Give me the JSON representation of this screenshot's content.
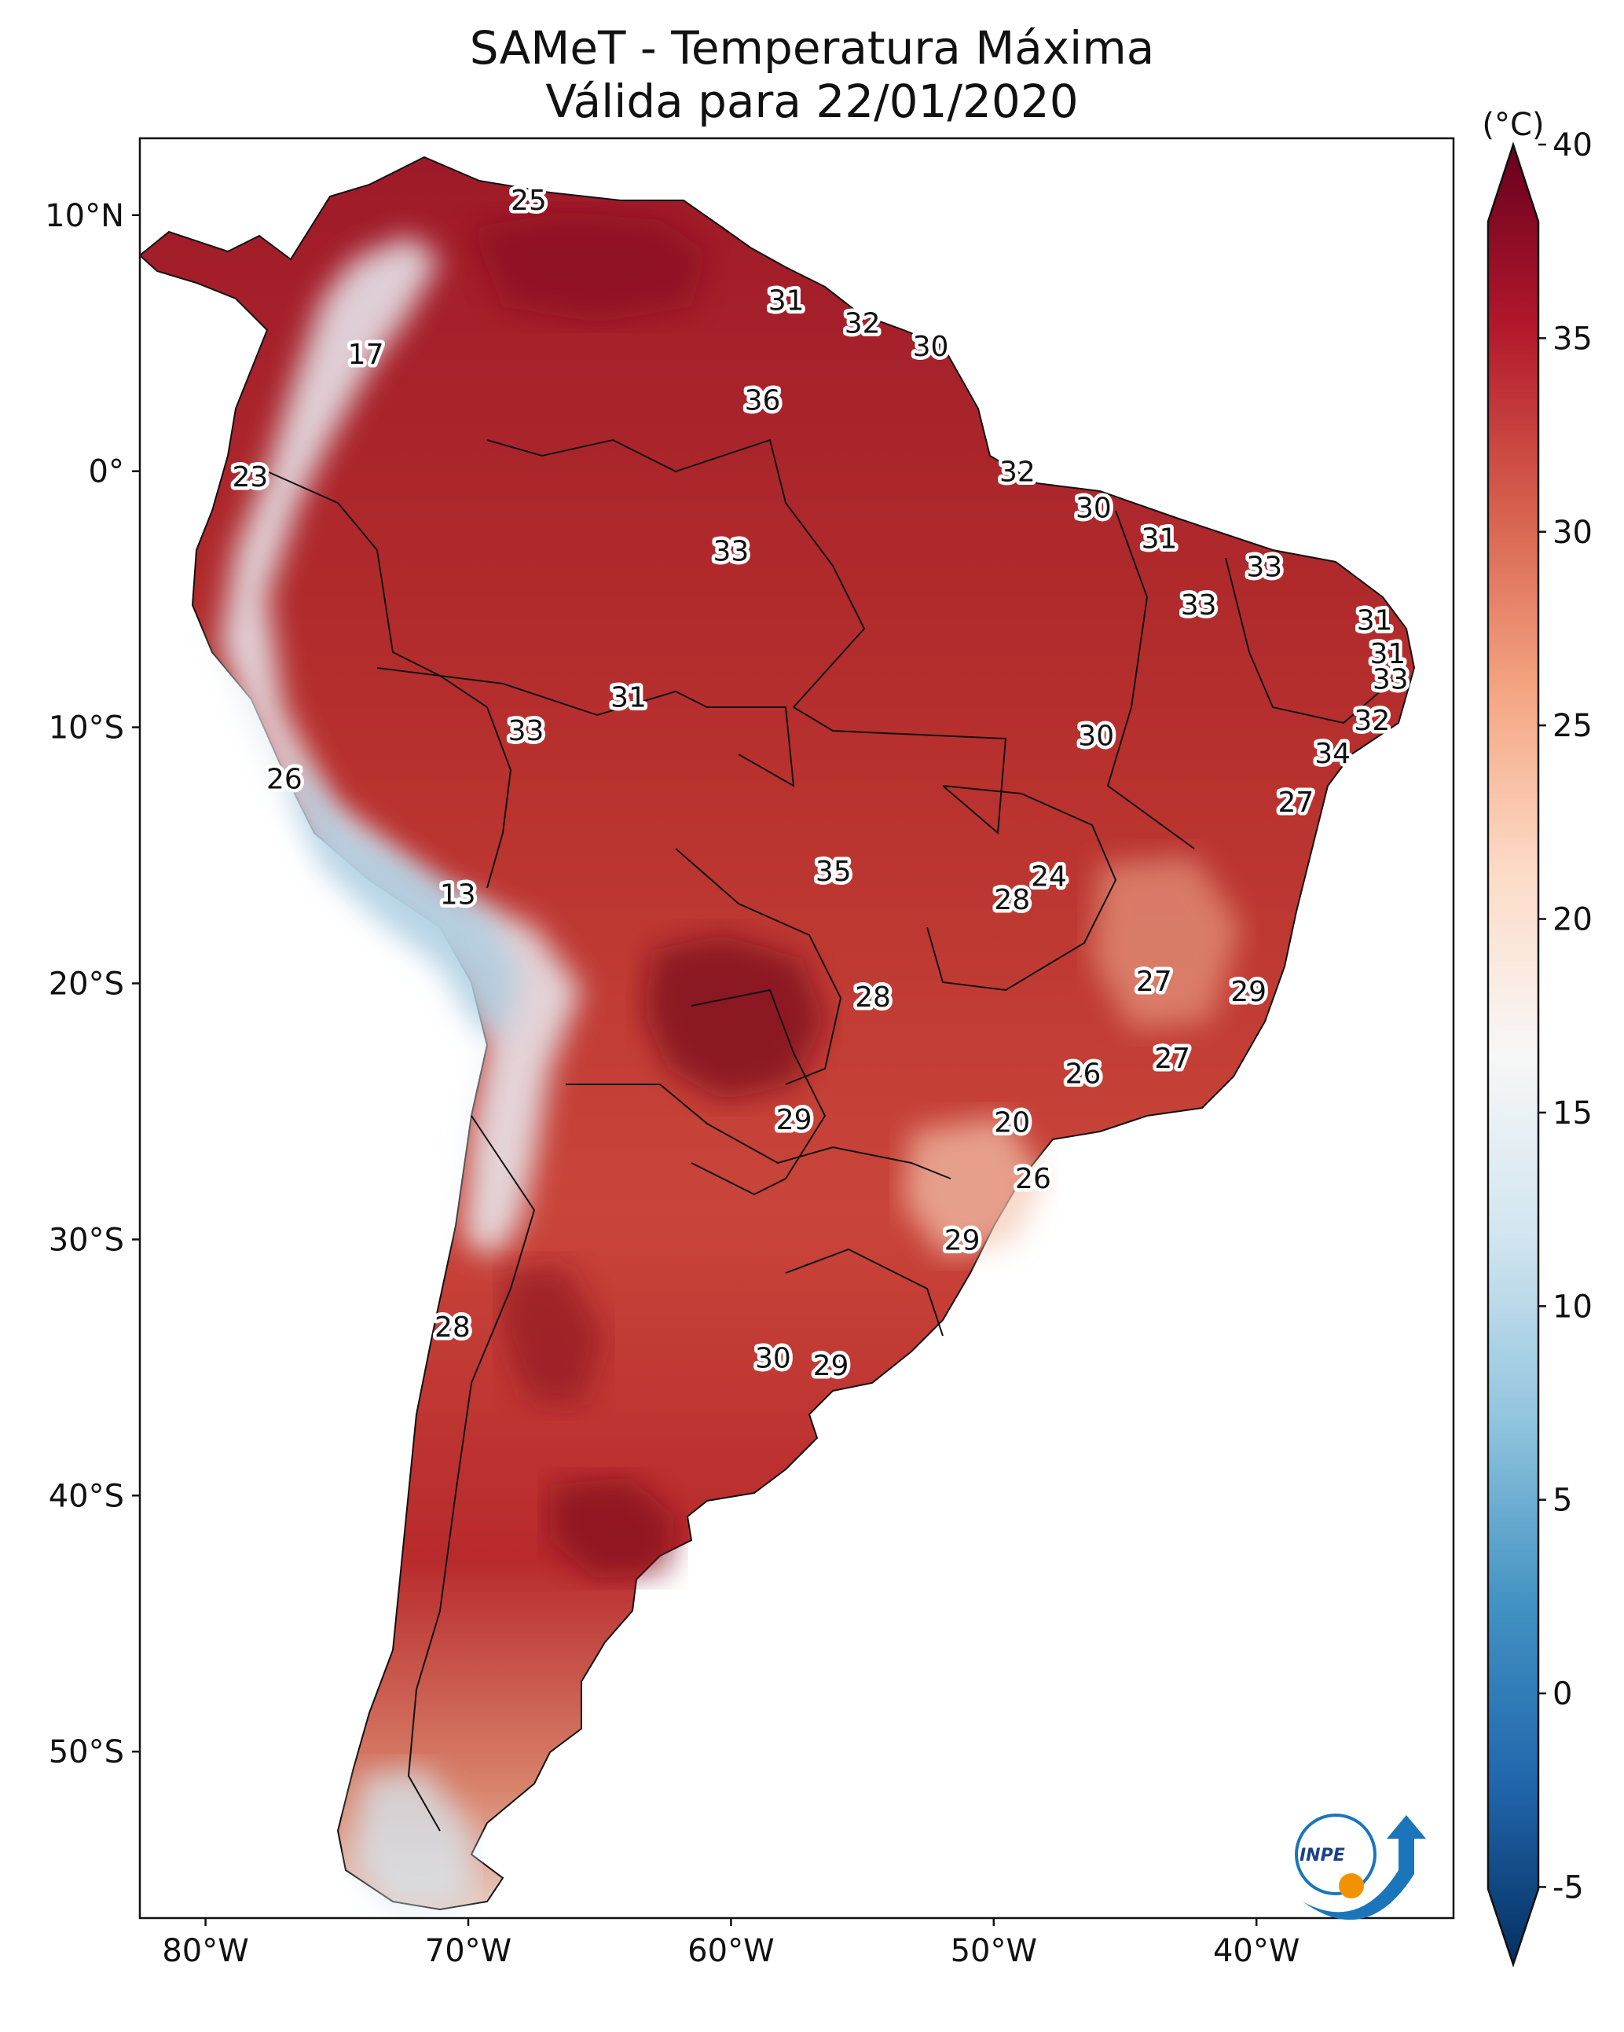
{
  "title": "SAMeT - Temperatura Máxima",
  "subtitle": "Válida para 22/01/2020",
  "colorbar": {
    "unit": "(°C)",
    "ticks": [
      "40",
      "35",
      "30",
      "25",
      "20",
      "15",
      "10",
      "5",
      "0",
      "-5"
    ],
    "min": -7,
    "max": 40,
    "palette": [
      "#053061",
      "#2166ac",
      "#4393c3",
      "#92c5de",
      "#d1e5f0",
      "#f7f7f7",
      "#fddbc7",
      "#f4a582",
      "#d6604d",
      "#b2182b",
      "#67001f"
    ]
  },
  "axes": {
    "lat_ticks": [
      "10°N",
      "0°",
      "10°S",
      "20°S",
      "30°S",
      "40°S",
      "50°S"
    ],
    "lon_ticks": [
      "80°W",
      "70°W",
      "60°W",
      "50°W",
      "40°W"
    ]
  },
  "logo_text": "INPE",
  "chart_data": {
    "type": "map",
    "title": "SAMeT - Temperatura Máxima Válida para 22/01/2020",
    "unit": "°C",
    "xlim": [
      -82.5,
      -32.5
    ],
    "ylim": [
      -56.5,
      13
    ],
    "labels": [
      {
        "lon": -67.7,
        "lat": 10.6,
        "value": "25"
      },
      {
        "lon": -73.9,
        "lat": 4.6,
        "value": "17"
      },
      {
        "lon": -78.3,
        "lat": -0.2,
        "value": "23"
      },
      {
        "lon": -57.9,
        "lat": 6.7,
        "value": "31"
      },
      {
        "lon": -55.0,
        "lat": 5.8,
        "value": "32"
      },
      {
        "lon": -52.4,
        "lat": 4.9,
        "value": "30"
      },
      {
        "lon": -58.8,
        "lat": 2.8,
        "value": "36"
      },
      {
        "lon": -49.1,
        "lat": 0.0,
        "value": "32"
      },
      {
        "lon": -46.2,
        "lat": -1.4,
        "value": "30"
      },
      {
        "lon": -43.7,
        "lat": -2.6,
        "value": "31"
      },
      {
        "lon": -39.7,
        "lat": -3.7,
        "value": "33"
      },
      {
        "lon": -60.0,
        "lat": -3.1,
        "value": "33"
      },
      {
        "lon": -42.2,
        "lat": -5.2,
        "value": "33"
      },
      {
        "lon": -35.5,
        "lat": -5.8,
        "value": "31"
      },
      {
        "lon": -35.0,
        "lat": -7.1,
        "value": "31"
      },
      {
        "lon": -34.9,
        "lat": -8.1,
        "value": "33"
      },
      {
        "lon": -35.6,
        "lat": -9.7,
        "value": "32"
      },
      {
        "lon": -37.1,
        "lat": -11.0,
        "value": "34"
      },
      {
        "lon": -38.5,
        "lat": -12.9,
        "value": "27"
      },
      {
        "lon": -46.1,
        "lat": -10.3,
        "value": "30"
      },
      {
        "lon": -63.9,
        "lat": -8.8,
        "value": "31"
      },
      {
        "lon": -67.8,
        "lat": -10.1,
        "value": "33"
      },
      {
        "lon": -77.0,
        "lat": -12.0,
        "value": "26"
      },
      {
        "lon": -70.4,
        "lat": -16.5,
        "value": "13"
      },
      {
        "lon": -56.1,
        "lat": -15.6,
        "value": "35"
      },
      {
        "lon": -47.9,
        "lat": -15.8,
        "value": "24"
      },
      {
        "lon": -49.3,
        "lat": -16.7,
        "value": "28"
      },
      {
        "lon": -43.9,
        "lat": -19.9,
        "value": "27"
      },
      {
        "lon": -40.3,
        "lat": -20.3,
        "value": "29"
      },
      {
        "lon": -54.6,
        "lat": -20.5,
        "value": "28"
      },
      {
        "lon": -43.2,
        "lat": -22.9,
        "value": "27"
      },
      {
        "lon": -46.6,
        "lat": -23.5,
        "value": "26"
      },
      {
        "lon": -49.3,
        "lat": -25.4,
        "value": "20"
      },
      {
        "lon": -57.6,
        "lat": -25.3,
        "value": "29"
      },
      {
        "lon": -48.5,
        "lat": -27.6,
        "value": "26"
      },
      {
        "lon": -51.2,
        "lat": -30.0,
        "value": "29"
      },
      {
        "lon": -70.6,
        "lat": -33.4,
        "value": "28"
      },
      {
        "lon": -58.4,
        "lat": -34.6,
        "value": "30"
      },
      {
        "lon": -56.2,
        "lat": -34.9,
        "value": "29"
      }
    ]
  }
}
